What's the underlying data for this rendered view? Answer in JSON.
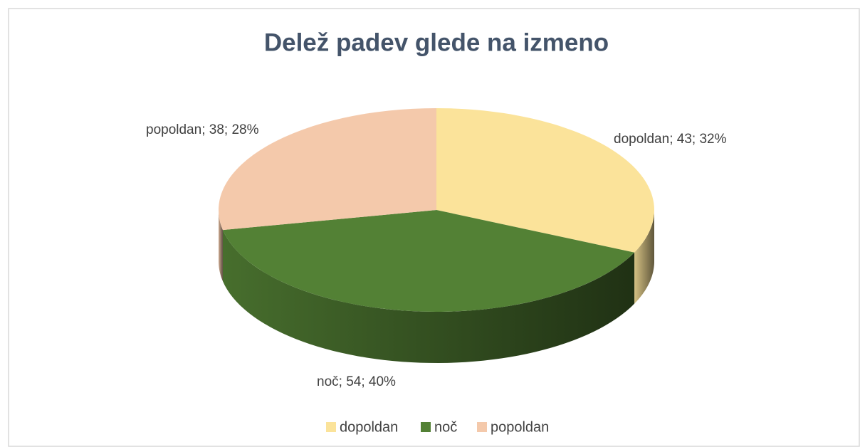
{
  "chart_data": {
    "type": "pie3d",
    "title": "Delež padev glede na izmeno",
    "categories": [
      "dopoldan",
      "noč",
      "popoldan"
    ],
    "values": [
      43,
      54,
      38
    ],
    "value_labels": [
      "dopoldan; 43; 32%",
      "noč; 54; 40%",
      "popoldan; 38; 28%"
    ],
    "colors": [
      "#fbe39a",
      "#538135",
      "#f4c9ab"
    ],
    "legend": "bottom"
  }
}
